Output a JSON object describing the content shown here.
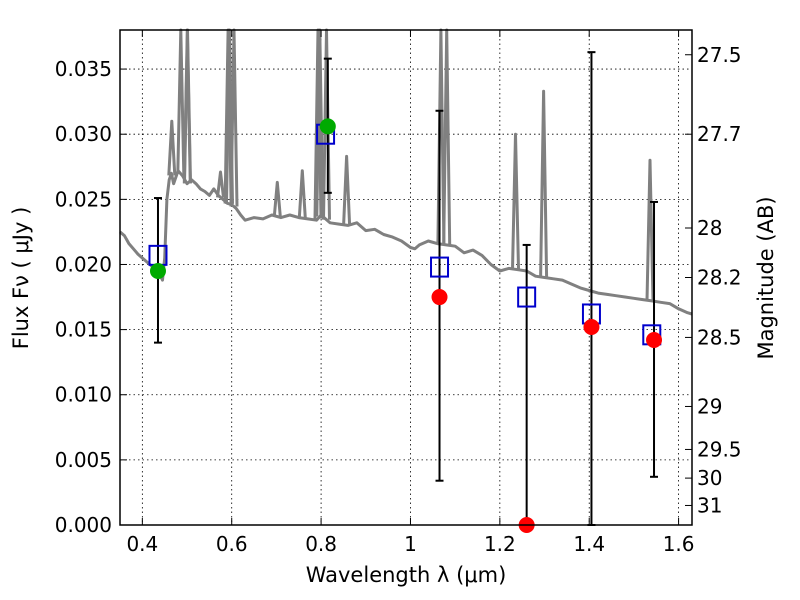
{
  "chart_data": {
    "type": "scatter",
    "title": "",
    "xlabel": "Wavelength  λ (μm)",
    "ylabel": "Flux  Fν  ( μJy )",
    "y2label": "Magnitude (AB)",
    "xlim": [
      0.35,
      1.63
    ],
    "ylim": [
      0.0,
      0.038
    ],
    "grid": true,
    "x_ticks": [
      {
        "value": 0.4,
        "label": "0.4"
      },
      {
        "value": 0.6,
        "label": "0.6"
      },
      {
        "value": 0.8,
        "label": "0.8"
      },
      {
        "value": 1.0,
        "label": "1"
      },
      {
        "value": 1.2,
        "label": "1.2"
      },
      {
        "value": 1.4,
        "label": "1.4"
      },
      {
        "value": 1.6,
        "label": "1.6"
      }
    ],
    "y_ticks": [
      {
        "value": 0.0,
        "label": "0.000"
      },
      {
        "value": 0.005,
        "label": "0.005"
      },
      {
        "value": 0.01,
        "label": "0.010"
      },
      {
        "value": 0.015,
        "label": "0.015"
      },
      {
        "value": 0.02,
        "label": "0.020"
      },
      {
        "value": 0.025,
        "label": "0.025"
      },
      {
        "value": 0.03,
        "label": "0.030"
      },
      {
        "value": 0.035,
        "label": "0.035"
      }
    ],
    "magnitude_ticks": [
      {
        "flux": 0.0361,
        "label": "27.5"
      },
      {
        "flux": 0.03,
        "label": "27.7"
      },
      {
        "flux": 0.0228,
        "label": "28"
      },
      {
        "flux": 0.019,
        "label": "28.2"
      },
      {
        "flux": 0.0144,
        "label": "28.5"
      },
      {
        "flux": 0.0091,
        "label": "29"
      },
      {
        "flux": 0.0058,
        "label": "29.5"
      },
      {
        "flux": 0.0036,
        "label": "30"
      },
      {
        "flux": 0.0015,
        "label": "31"
      }
    ],
    "series": [
      {
        "role": "model_sed",
        "color": "#808080",
        "points": [
          [
            0.35,
            0.0225
          ],
          [
            0.36,
            0.0222
          ],
          [
            0.37,
            0.0216
          ],
          [
            0.38,
            0.0212
          ],
          [
            0.39,
            0.0208
          ],
          [
            0.4,
            0.0205
          ],
          [
            0.41,
            0.0202
          ],
          [
            0.42,
            0.0199
          ],
          [
            0.43,
            0.0197
          ],
          [
            0.44,
            0.0192
          ],
          [
            0.445,
            0.0188
          ],
          [
            0.45,
            0.0205
          ],
          [
            0.455,
            0.025
          ],
          [
            0.46,
            0.0265
          ],
          [
            0.465,
            0.027
          ],
          [
            0.47,
            0.0262
          ],
          [
            0.48,
            0.0272
          ],
          [
            0.49,
            0.0268
          ],
          [
            0.5,
            0.0262
          ],
          [
            0.51,
            0.0265
          ],
          [
            0.52,
            0.0262
          ],
          [
            0.53,
            0.0258
          ],
          [
            0.54,
            0.0256
          ],
          [
            0.55,
            0.0253
          ],
          [
            0.56,
            0.0258
          ],
          [
            0.57,
            0.0253
          ],
          [
            0.58,
            0.025
          ],
          [
            0.59,
            0.0247
          ],
          [
            0.6,
            0.0246
          ],
          [
            0.61,
            0.0243
          ],
          [
            0.62,
            0.0238
          ],
          [
            0.63,
            0.0234
          ],
          [
            0.65,
            0.0236
          ],
          [
            0.67,
            0.0235
          ],
          [
            0.69,
            0.0238
          ],
          [
            0.71,
            0.0236
          ],
          [
            0.73,
            0.0238
          ],
          [
            0.75,
            0.0236
          ],
          [
            0.77,
            0.0235
          ],
          [
            0.79,
            0.0234
          ],
          [
            0.8,
            0.0238
          ],
          [
            0.82,
            0.0232
          ],
          [
            0.84,
            0.0231
          ],
          [
            0.86,
            0.023
          ],
          [
            0.88,
            0.0232
          ],
          [
            0.9,
            0.0226
          ],
          [
            0.92,
            0.0227
          ],
          [
            0.94,
            0.0223
          ],
          [
            0.96,
            0.0221
          ],
          [
            0.98,
            0.0218
          ],
          [
            1.0,
            0.0213
          ],
          [
            1.01,
            0.0212
          ],
          [
            1.02,
            0.0215
          ],
          [
            1.04,
            0.0218
          ],
          [
            1.06,
            0.0216
          ],
          [
            1.08,
            0.0215
          ],
          [
            1.1,
            0.0214
          ],
          [
            1.12,
            0.0209
          ],
          [
            1.14,
            0.0211
          ],
          [
            1.16,
            0.0207
          ],
          [
            1.18,
            0.02
          ],
          [
            1.2,
            0.0195
          ],
          [
            1.22,
            0.0197
          ],
          [
            1.24,
            0.0196
          ],
          [
            1.26,
            0.0195
          ],
          [
            1.28,
            0.0191
          ],
          [
            1.3,
            0.019
          ],
          [
            1.32,
            0.0189
          ],
          [
            1.34,
            0.0188
          ],
          [
            1.36,
            0.0185
          ],
          [
            1.38,
            0.0182
          ],
          [
            1.4,
            0.018
          ],
          [
            1.42,
            0.0178
          ],
          [
            1.44,
            0.0177
          ],
          [
            1.46,
            0.0176
          ],
          [
            1.48,
            0.0175
          ],
          [
            1.5,
            0.0174
          ],
          [
            1.52,
            0.0173
          ],
          [
            1.54,
            0.0172
          ],
          [
            1.56,
            0.0171
          ],
          [
            1.58,
            0.017
          ],
          [
            1.6,
            0.0166
          ],
          [
            1.62,
            0.0163
          ],
          [
            1.63,
            0.0162
          ]
        ]
      },
      {
        "role": "model_emission_lines",
        "color": "#808080",
        "lines": [
          {
            "x": 0.466,
            "peak": 0.031
          },
          {
            "x": 0.486,
            "peak": 0.038
          },
          {
            "x": 0.501,
            "peak": 0.038
          },
          {
            "x": 0.5007,
            "peak": 0.038
          },
          {
            "x": 0.575,
            "peak": 0.0271
          },
          {
            "x": 0.592,
            "peak": 0.038
          },
          {
            "x": 0.595,
            "peak": 0.038
          },
          {
            "x": 0.605,
            "peak": 0.038
          },
          {
            "x": 0.702,
            "peak": 0.0263
          },
          {
            "x": 0.758,
            "peak": 0.0272
          },
          {
            "x": 0.793,
            "peak": 0.038
          },
          {
            "x": 0.797,
            "peak": 0.038
          },
          {
            "x": 0.812,
            "peak": 0.038
          },
          {
            "x": 0.857,
            "peak": 0.0283
          },
          {
            "x": 1.068,
            "peak": 0.038
          },
          {
            "x": 1.081,
            "peak": 0.038
          },
          {
            "x": 1.235,
            "peak": 0.03
          },
          {
            "x": 1.298,
            "peak": 0.0333
          },
          {
            "x": 1.536,
            "peak": 0.028
          }
        ]
      },
      {
        "role": "model_bandpass_flux",
        "marker": "open-square",
        "color": "#0000cc",
        "points": [
          [
            0.435,
            0.0207
          ],
          [
            0.81,
            0.03
          ],
          [
            1.065,
            0.0198
          ],
          [
            1.26,
            0.0175
          ],
          [
            1.405,
            0.0162
          ],
          [
            1.54,
            0.0146
          ]
        ]
      },
      {
        "role": "observed_flux",
        "marker": "filled-circle",
        "points": [
          {
            "x": 0.435,
            "y": 0.0195,
            "yerr_low": 0.014,
            "yerr_high": 0.0251,
            "color": "#00aa00"
          },
          {
            "x": 0.815,
            "y": 0.0306,
            "yerr_low": 0.0255,
            "yerr_high": 0.0358,
            "color": "#00aa00"
          },
          {
            "x": 1.065,
            "y": 0.0175,
            "yerr_low": 0.0034,
            "yerr_high": 0.0318,
            "color": "#ff0000"
          },
          {
            "x": 1.26,
            "y": 0.0,
            "yerr_low": 0.0,
            "yerr_high": 0.0215,
            "color": "#ff0000"
          },
          {
            "x": 1.405,
            "y": 0.0152,
            "yerr_low": 0.0,
            "yerr_high": 0.0363,
            "color": "#ff0000"
          },
          {
            "x": 1.545,
            "y": 0.0142,
            "yerr_low": 0.0037,
            "yerr_high": 0.0248,
            "color": "#ff0000"
          }
        ]
      }
    ]
  }
}
